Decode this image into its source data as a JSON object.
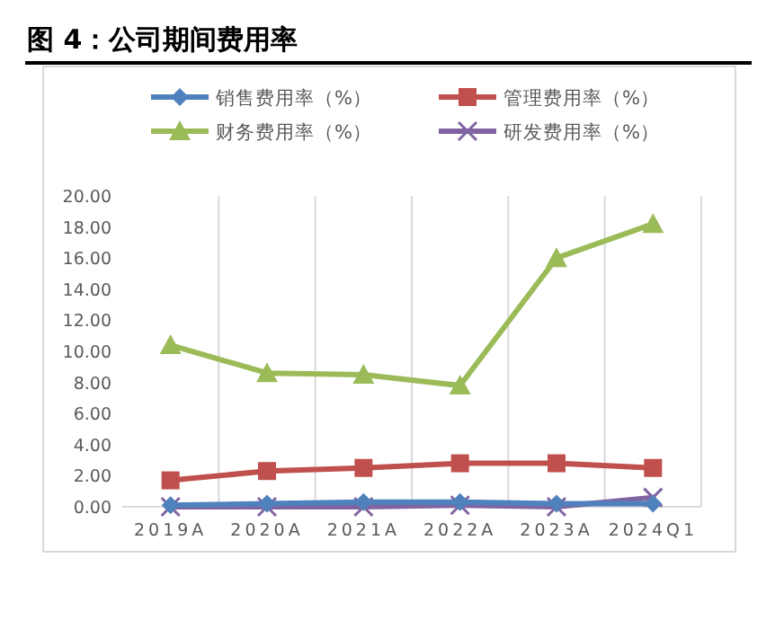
{
  "chart_data": {
    "type": "line",
    "title": "图 4：公司期间费用率",
    "categories": [
      "2019A",
      "2020A",
      "2021A",
      "2022A",
      "2023A",
      "2024Q1"
    ],
    "series": [
      {
        "name": "销售费用率（%）",
        "color": "#4f81bd",
        "marker": "diamond",
        "values": [
          0.1,
          0.2,
          0.3,
          0.3,
          0.2,
          0.2
        ]
      },
      {
        "name": "管理费用率（%）",
        "color": "#c0504d",
        "marker": "square",
        "values": [
          1.7,
          2.3,
          2.5,
          2.8,
          2.8,
          2.5
        ]
      },
      {
        "name": "财务费用率（%）",
        "color": "#9bbb59",
        "marker": "triangle",
        "values": [
          10.4,
          8.6,
          8.5,
          7.8,
          16.0,
          18.2
        ]
      },
      {
        "name": "研发费用率（%）",
        "color": "#8064a2",
        "marker": "cross",
        "values": [
          0.0,
          0.0,
          0.0,
          0.1,
          0.0,
          0.6
        ]
      }
    ],
    "ylim": [
      0,
      20
    ],
    "yticks": [
      {
        "value": 0,
        "label": "0.00"
      },
      {
        "value": 2,
        "label": "2.00"
      },
      {
        "value": 4,
        "label": "4.00"
      },
      {
        "value": 6,
        "label": "6.00"
      },
      {
        "value": 8,
        "label": "8.00"
      },
      {
        "value": 10,
        "label": "10.00"
      },
      {
        "value": 12,
        "label": "12.00"
      },
      {
        "value": 14,
        "label": "14.00"
      },
      {
        "value": 16,
        "label": "16.00"
      },
      {
        "value": 18,
        "label": "18.00"
      },
      {
        "value": 20,
        "label": "20.00"
      }
    ],
    "grid": "x",
    "legend": "top",
    "line_style": "solid"
  }
}
